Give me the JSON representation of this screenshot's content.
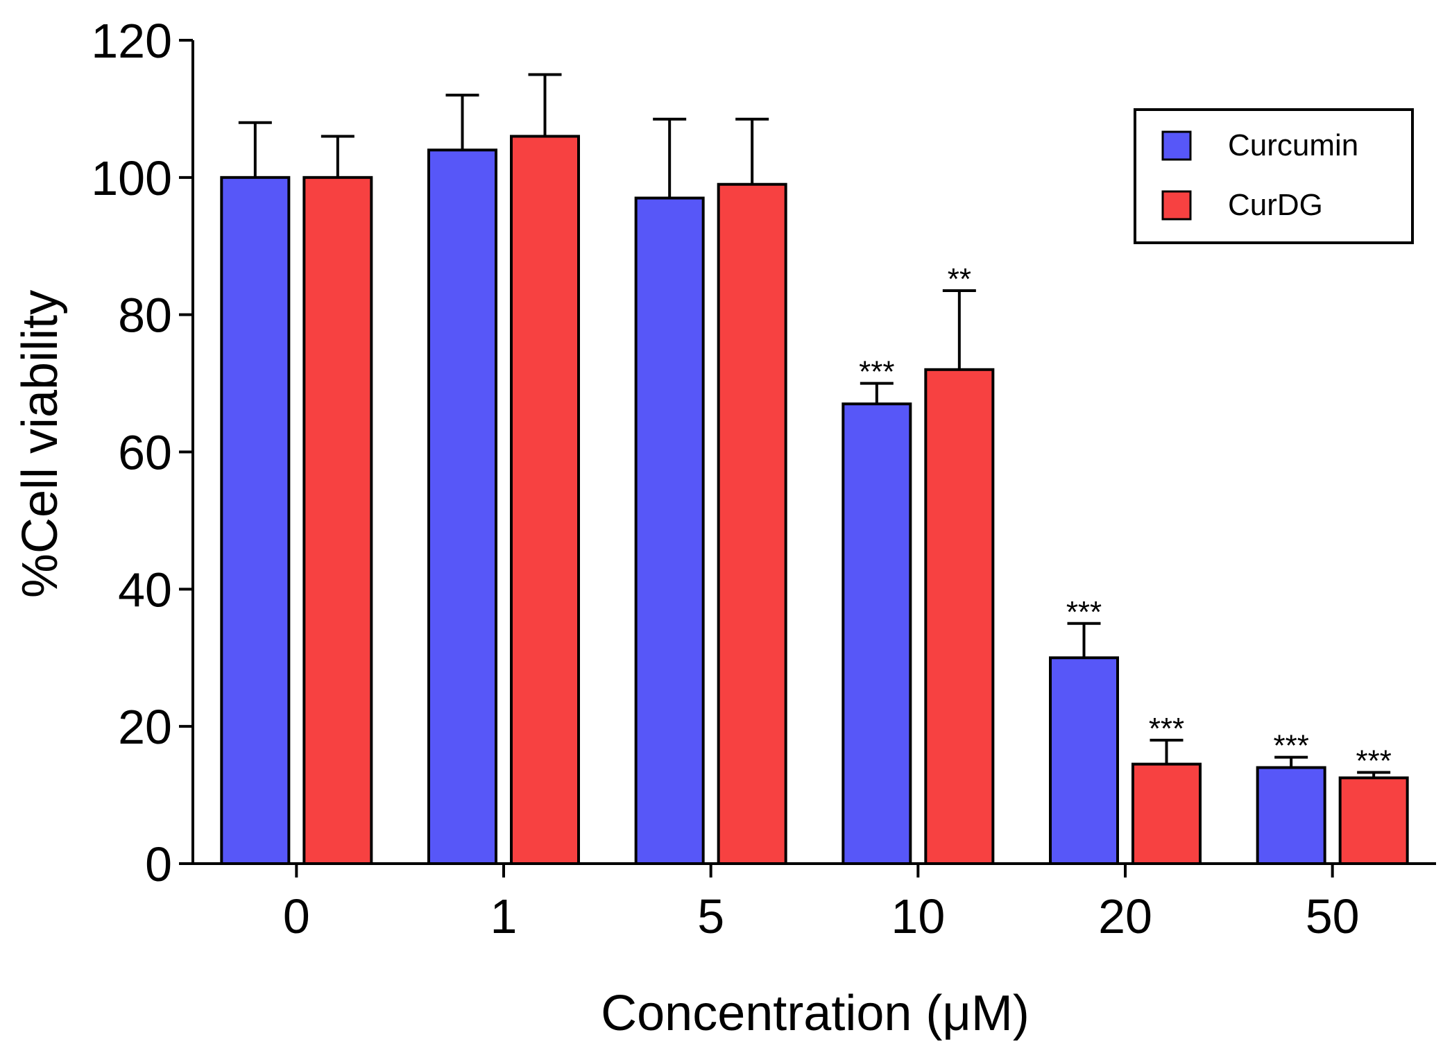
{
  "chart_data": {
    "type": "bar",
    "title": "",
    "xlabel": "Concentration (μM)",
    "ylabel": "%Cell viability",
    "ylim": [
      0,
      120
    ],
    "yticks": [
      0,
      20,
      40,
      60,
      80,
      100,
      120
    ],
    "categories": [
      "0",
      "1",
      "5",
      "10",
      "20",
      "50"
    ],
    "series": [
      {
        "name": "Curcumin",
        "color": "#5757F8",
        "values": [
          100,
          104,
          97,
          67,
          30,
          14
        ],
        "errors": [
          8,
          8,
          11.5,
          3,
          5,
          1.5
        ],
        "significance": [
          "",
          "",
          "",
          "***",
          "***",
          "***"
        ]
      },
      {
        "name": "CurDG",
        "color": "#F74141",
        "values": [
          100,
          106,
          99,
          72,
          14.5,
          12.5
        ],
        "errors": [
          6,
          9,
          9.5,
          11.5,
          3.5,
          0.8
        ],
        "significance": [
          "",
          "",
          "",
          "**",
          "***",
          "***"
        ]
      }
    ],
    "legend": {
      "position": "top-right",
      "entries": [
        "Curcumin",
        "CurDG"
      ]
    },
    "grid": false
  }
}
